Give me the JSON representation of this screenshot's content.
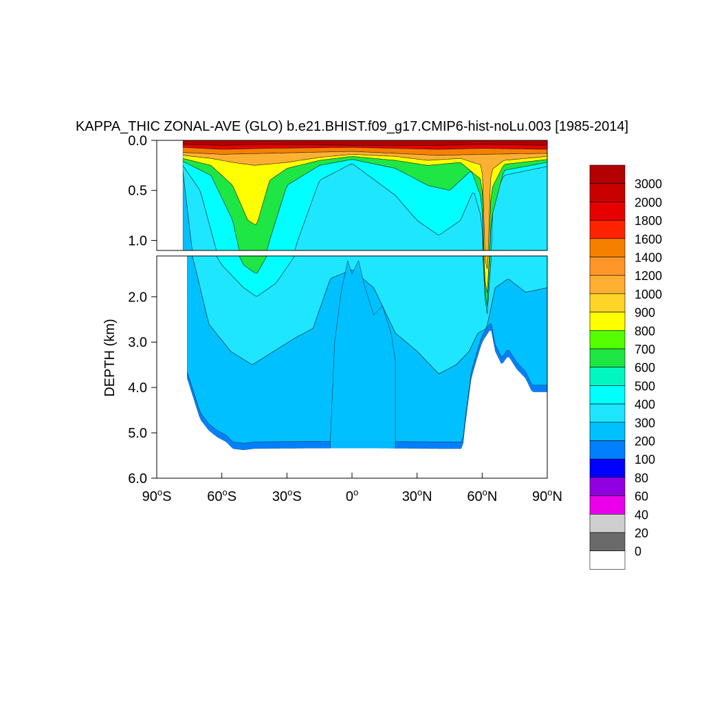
{
  "chart_data": {
    "type": "heatmap",
    "title": "KAPPA_THIC ZONAL-AVE (GLO) b.e21.BHIST.f09_g17.CMIP6-hist-noLu.003 [1985-2014]",
    "ylabel": "DEPTH (km)",
    "xlabel": "",
    "degree_symbol": "o",
    "x_ticks": [
      {
        "value": -90,
        "num": "90",
        "hemi": "S"
      },
      {
        "value": -60,
        "num": "60",
        "hemi": "S"
      },
      {
        "value": -30,
        "num": "30",
        "hemi": "S"
      },
      {
        "value": 0,
        "num": "0",
        "hemi": ""
      },
      {
        "value": 30,
        "num": "30",
        "hemi": "N"
      },
      {
        "value": 60,
        "num": "60",
        "hemi": "N"
      },
      {
        "value": 90,
        "num": "90",
        "hemi": "N"
      }
    ],
    "upper_panel": {
      "ylim": [
        0.0,
        1.1
      ],
      "y_ticks": [
        {
          "value": 0.0,
          "label": "0.0"
        },
        {
          "value": 0.5,
          "label": "0.5"
        },
        {
          "value": 1.0,
          "label": "1.0"
        }
      ]
    },
    "lower_panel": {
      "ylim": [
        1.1,
        6.0
      ],
      "y_ticks": [
        {
          "value": 2.0,
          "label": "2.0"
        },
        {
          "value": 3.0,
          "label": "3.0"
        },
        {
          "value": 4.0,
          "label": "4.0"
        },
        {
          "value": 5.0,
          "label": "5.0"
        },
        {
          "value": 6.0,
          "label": "6.0"
        }
      ]
    },
    "xlim": [
      -90,
      90
    ],
    "colorbar": {
      "labels": [
        "3000",
        "2000",
        "1800",
        "1600",
        "1400",
        "1200",
        "1000",
        "900",
        "800",
        "700",
        "600",
        "500",
        "400",
        "300",
        "200",
        "100",
        "80",
        "60",
        "40",
        "20",
        "0"
      ],
      "colors": [
        "#b30000",
        "#c80000",
        "#e60000",
        "#ff2200",
        "#f58000",
        "#ff9628",
        "#ffb033",
        "#ffd428",
        "#ffff00",
        "#55ff00",
        "#1ee644",
        "#00f7c0",
        "#00ffff",
        "#1ee6ff",
        "#00c0ff",
        "#0080ff",
        "#0000ff",
        "#9000e0",
        "#ea00ea",
        "#cfcfcf",
        "#6a6a6a",
        "#ffffff"
      ]
    },
    "field": {
      "description_units": "km",
      "surface_layer_depth": 0.06,
      "land": {
        "upper_start_lat": -78,
        "lower_start_lat": -76,
        "bottom_profile": [
          [
            -76,
            3.8
          ],
          [
            -74,
            4.1
          ],
          [
            -72,
            4.4
          ],
          [
            -70,
            4.7
          ],
          [
            -66,
            4.95
          ],
          [
            -62,
            5.1
          ],
          [
            -58,
            5.2
          ],
          [
            -55,
            5.35
          ],
          [
            -50,
            5.38
          ],
          [
            -45,
            5.35
          ],
          [
            -20,
            5.34
          ],
          [
            10,
            5.34
          ],
          [
            40,
            5.35
          ],
          [
            51,
            5.35
          ],
          [
            52,
            4.9
          ],
          [
            55,
            3.8
          ],
          [
            58,
            3.3
          ],
          [
            60,
            3.0
          ],
          [
            62,
            2.85
          ],
          [
            64,
            2.7
          ],
          [
            66,
            3.2
          ],
          [
            69,
            3.5
          ],
          [
            72,
            3.3
          ],
          [
            76,
            3.6
          ],
          [
            80,
            3.8
          ],
          [
            83,
            4.1
          ],
          [
            90,
            4.1
          ]
        ]
      },
      "ridge": [
        [
          -10,
          5.2
        ],
        [
          -8,
          3.0
        ],
        [
          -5,
          1.9
        ],
        [
          -2,
          1.2
        ],
        [
          0,
          1.5
        ],
        [
          3,
          1.2
        ],
        [
          6,
          1.8
        ],
        [
          10,
          2.4
        ],
        [
          14,
          2.2
        ],
        [
          18,
          2.8
        ],
        [
          20,
          3.4
        ]
      ],
      "bands": [
        {
          "level": 3000,
          "color": "#b30000",
          "depth": [
            [
              -78,
              0.04
            ],
            [
              -60,
              0.05
            ],
            [
              -40,
              0.04
            ],
            [
              0,
              0.05
            ],
            [
              40,
              0.05
            ],
            [
              60,
              0.04
            ],
            [
              90,
              0.05
            ]
          ]
        },
        {
          "level": 2000,
          "color": "#e60000",
          "depth": [
            [
              -78,
              0.07
            ],
            [
              -60,
              0.09
            ],
            [
              -40,
              0.08
            ],
            [
              0,
              0.07
            ],
            [
              40,
              0.09
            ],
            [
              60,
              0.08
            ],
            [
              90,
              0.09
            ]
          ]
        },
        {
          "level": 1600,
          "color": "#f58000",
          "depth": [
            [
              -78,
              0.12
            ],
            [
              -60,
              0.14
            ],
            [
              -40,
              0.13
            ],
            [
              0,
              0.11
            ],
            [
              40,
              0.15
            ],
            [
              60,
              0.14
            ],
            [
              90,
              0.13
            ]
          ]
        },
        {
          "level": 1000,
          "color": "#ffb033",
          "depth": [
            [
              -78,
              0.15
            ],
            [
              -65,
              0.18
            ],
            [
              -55,
              0.22
            ],
            [
              -45,
              0.25
            ],
            [
              -30,
              0.22
            ],
            [
              -15,
              0.17
            ],
            [
              0,
              0.14
            ],
            [
              20,
              0.16
            ],
            [
              35,
              0.2
            ],
            [
              50,
              0.18
            ],
            [
              60,
              0.25
            ],
            [
              62,
              1.6
            ],
            [
              64,
              0.3
            ],
            [
              70,
              0.2
            ],
            [
              90,
              0.16
            ]
          ]
        },
        {
          "level": 800,
          "color": "#ffff00",
          "depth": [
            [
              -78,
              0.18
            ],
            [
              -65,
              0.25
            ],
            [
              -55,
              0.45
            ],
            [
              -48,
              0.8
            ],
            [
              -44,
              0.85
            ],
            [
              -38,
              0.4
            ],
            [
              -30,
              0.28
            ],
            [
              -15,
              0.2
            ],
            [
              0,
              0.16
            ],
            [
              20,
              0.2
            ],
            [
              35,
              0.25
            ],
            [
              50,
              0.22
            ],
            [
              60,
              0.4
            ],
            [
              62,
              2.2
            ],
            [
              64,
              0.5
            ],
            [
              70,
              0.24
            ],
            [
              90,
              0.19
            ]
          ]
        },
        {
          "level": 600,
          "color": "#1ee644",
          "depth": [
            [
              -78,
              0.21
            ],
            [
              -65,
              0.35
            ],
            [
              -55,
              0.8
            ],
            [
              -50,
              1.3
            ],
            [
              -44,
              1.5
            ],
            [
              -38,
              1.0
            ],
            [
              -30,
              0.45
            ],
            [
              -15,
              0.25
            ],
            [
              0,
              0.19
            ],
            [
              20,
              0.28
            ],
            [
              35,
              0.45
            ],
            [
              45,
              0.5
            ],
            [
              55,
              0.3
            ],
            [
              60,
              0.6
            ],
            [
              62,
              2.5
            ],
            [
              64,
              0.8
            ],
            [
              70,
              0.3
            ],
            [
              90,
              0.22
            ]
          ]
        },
        {
          "level": 400,
          "color": "#00ffff",
          "depth": [
            [
              -78,
              0.25
            ],
            [
              -70,
              0.5
            ],
            [
              -60,
              1.3
            ],
            [
              -50,
              1.8
            ],
            [
              -44,
              2.0
            ],
            [
              -35,
              1.7
            ],
            [
              -25,
              1.0
            ],
            [
              -15,
              0.4
            ],
            [
              0,
              0.23
            ],
            [
              20,
              0.55
            ],
            [
              30,
              0.8
            ],
            [
              40,
              0.95
            ],
            [
              50,
              0.8
            ],
            [
              56,
              0.5
            ],
            [
              60,
              0.8
            ],
            [
              62,
              2.6
            ],
            [
              65,
              0.6
            ],
            [
              70,
              0.35
            ],
            [
              90,
              0.26
            ]
          ]
        },
        {
          "level": 300,
          "color": "#1ee6ff",
          "depth": [
            [
              -78,
              0.3
            ],
            [
              -72,
              1.4
            ],
            [
              -66,
              2.6
            ],
            [
              -56,
              3.2
            ],
            [
              -46,
              3.5
            ],
            [
              -36,
              3.2
            ],
            [
              -26,
              2.9
            ],
            [
              -18,
              2.7
            ],
            [
              -10,
              1.6
            ],
            [
              0,
              1.4
            ],
            [
              10,
              1.8
            ],
            [
              20,
              2.8
            ],
            [
              30,
              3.2
            ],
            [
              40,
              3.7
            ],
            [
              48,
              3.5
            ],
            [
              54,
              3.2
            ],
            [
              58,
              2.8
            ],
            [
              62,
              2.7
            ],
            [
              66,
              1.8
            ],
            [
              72,
              1.6
            ],
            [
              80,
              1.9
            ],
            [
              90,
              1.8
            ]
          ]
        },
        {
          "level": 200,
          "color": "#00c0ff",
          "depth": [
            [
              -78,
              6.0
            ],
            [
              90,
              6.0
            ]
          ]
        }
      ],
      "deep_band": {
        "level": 100,
        "color": "#0080ff",
        "thickness": 0.15
      }
    }
  }
}
